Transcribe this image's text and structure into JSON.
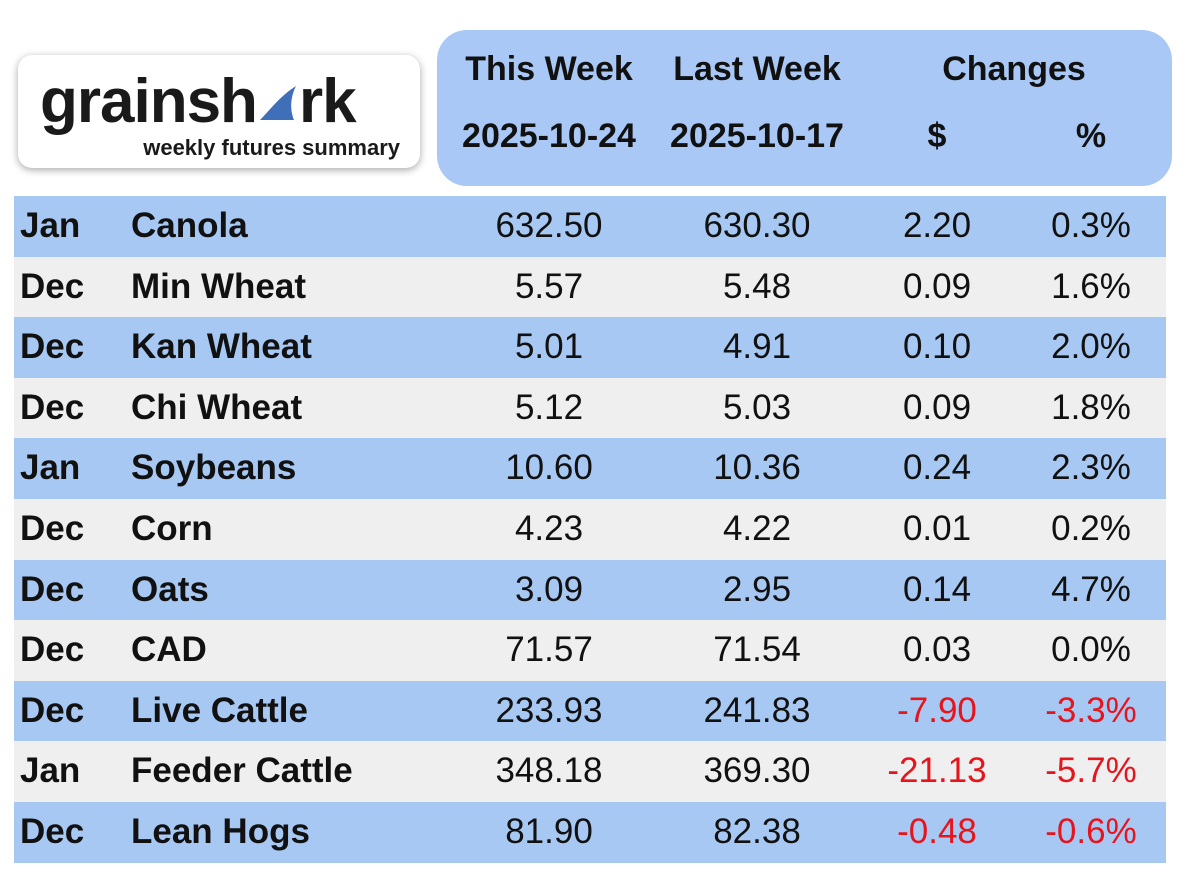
{
  "logo": {
    "brand_start": "grainsh",
    "brand_end": "rk",
    "tagline": "weekly futures summary"
  },
  "header": {
    "this_week": "This Week",
    "this_date": "2025-10-24",
    "last_week": "Last Week",
    "last_date": "2025-10-17",
    "changes": "Changes",
    "dollar": "$",
    "percent": "%"
  },
  "table": {
    "rows": [
      [
        "Jan",
        "Canola",
        "632.50",
        "630.30",
        "2.20",
        "0.3%"
      ],
      [
        "Dec",
        "Min Wheat",
        "5.57",
        "5.48",
        "0.09",
        "1.6%"
      ],
      [
        "Dec",
        "Kan Wheat",
        "5.01",
        "4.91",
        "0.10",
        "2.0%"
      ],
      [
        "Dec",
        "Chi Wheat",
        "5.12",
        "5.03",
        "0.09",
        "1.8%"
      ],
      [
        "Jan",
        "Soybeans",
        "10.60",
        "10.36",
        "0.24",
        "2.3%"
      ],
      [
        "Dec",
        "Corn",
        "4.23",
        "4.22",
        "0.01",
        "0.2%"
      ],
      [
        "Dec",
        "Oats",
        "3.09",
        "2.95",
        "0.14",
        "4.7%"
      ],
      [
        "Dec",
        "CAD",
        "71.57",
        "71.54",
        "0.03",
        "0.0%"
      ],
      [
        "Dec",
        "Live Cattle",
        "233.93",
        "241.83",
        "-7.90",
        "-3.3%"
      ],
      [
        "Jan",
        "Feeder Cattle",
        "348.18",
        "369.30",
        "-21.13",
        "-5.7%"
      ],
      [
        "Dec",
        "Lean Hogs",
        "81.90",
        "82.38",
        "-0.48",
        "-0.6%"
      ]
    ]
  }
}
